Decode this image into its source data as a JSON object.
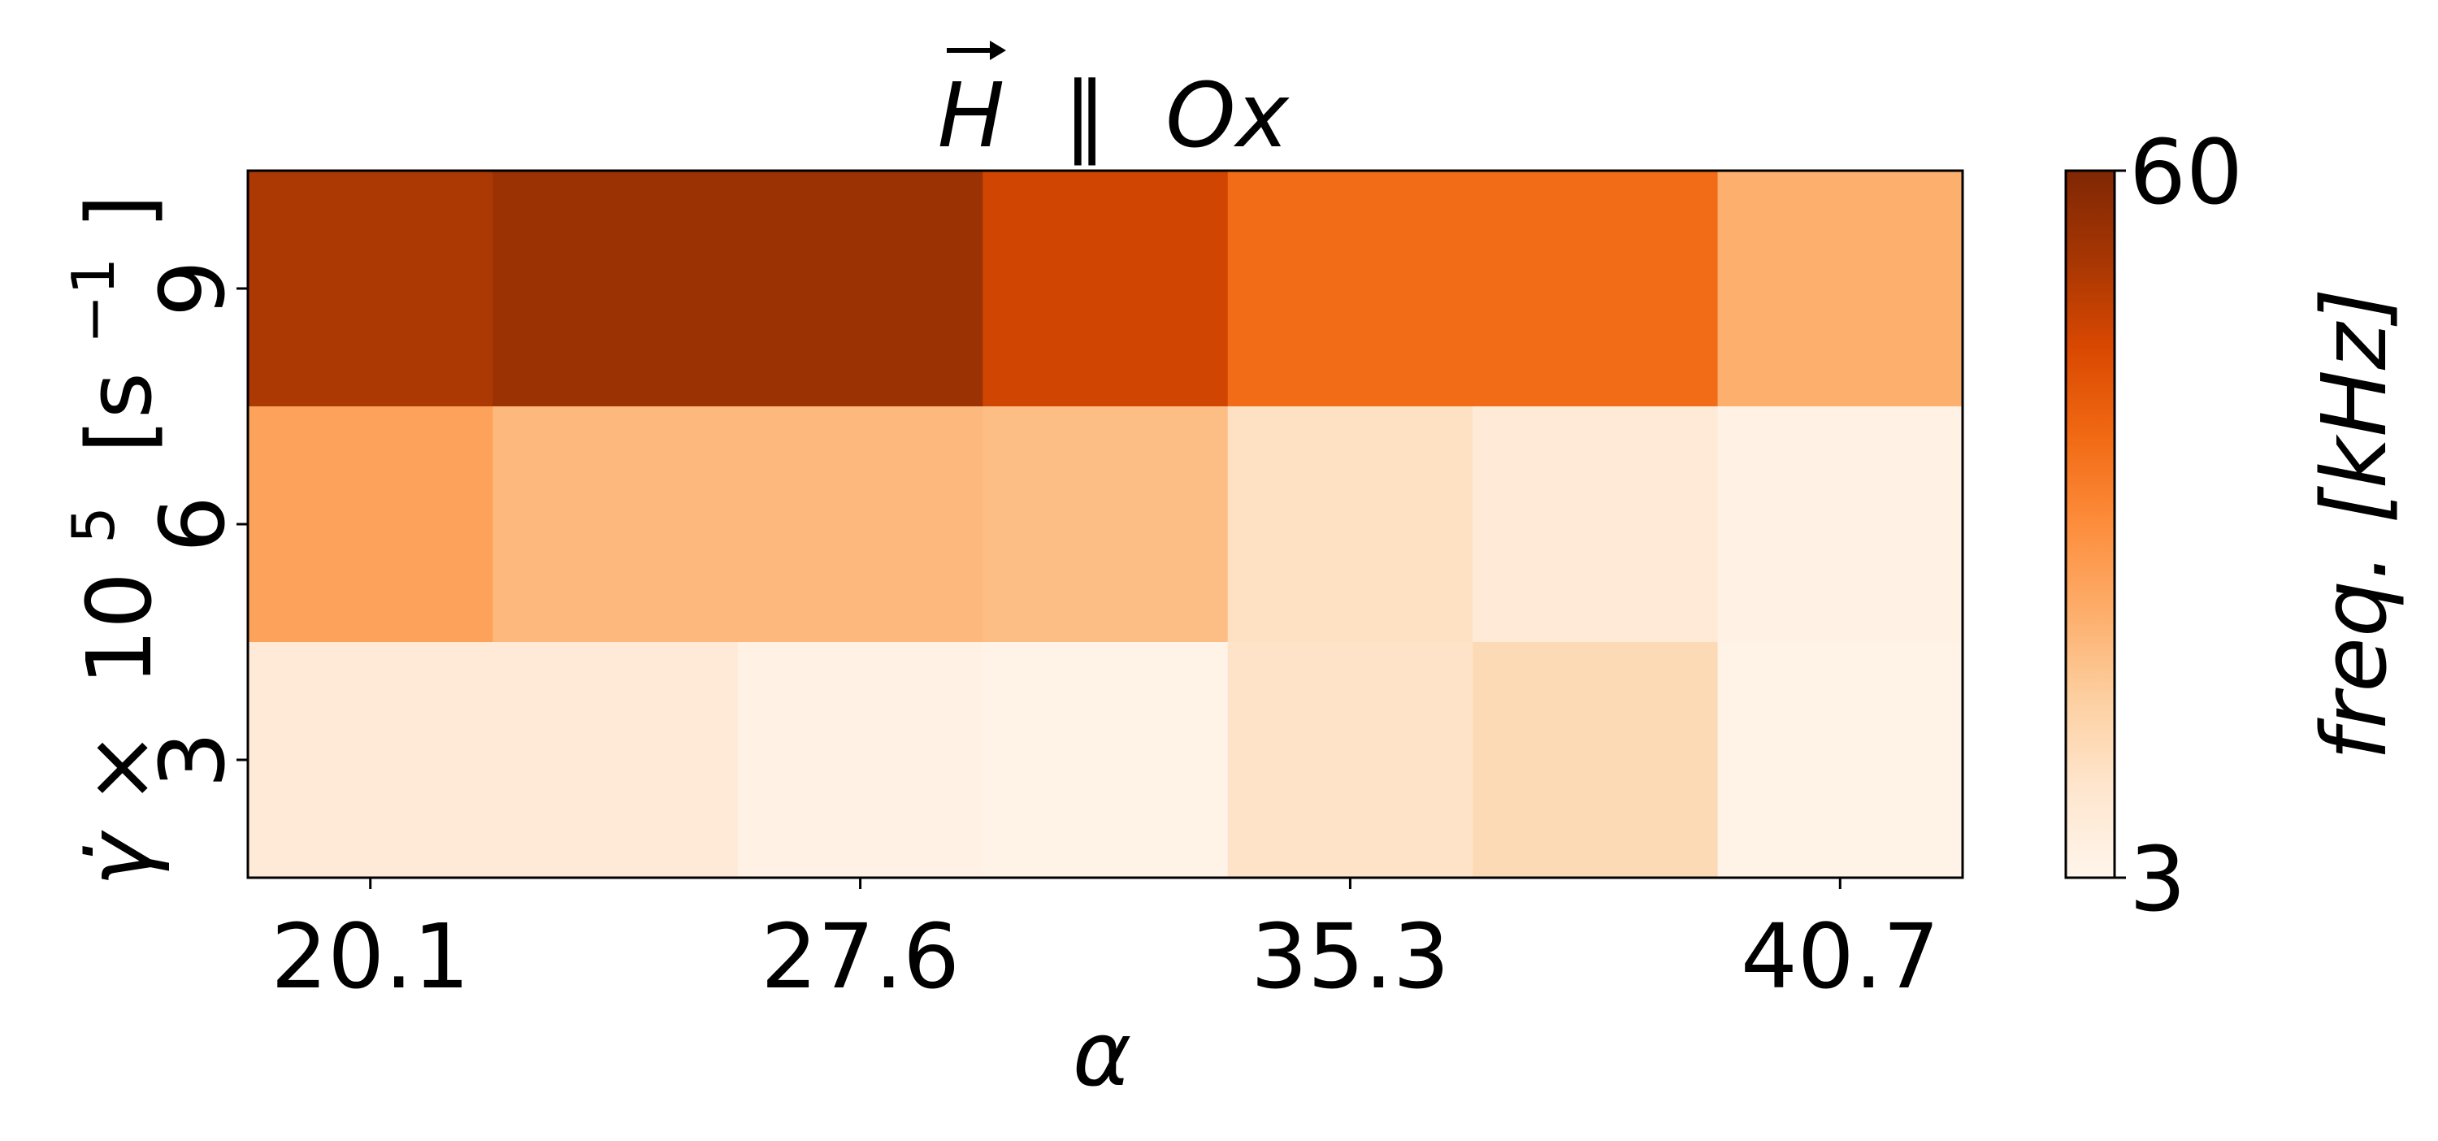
{
  "chart_data": {
    "type": "heatmap",
    "title": {
      "vector_symbol": "H",
      "relation": "∥",
      "axis": "Ox"
    },
    "xlabel": "α",
    "ylabel": {
      "symbol": "γ̇",
      "times": "×",
      "base": "10",
      "exponent": "5",
      "unit_open": "[s",
      "unit_exponent": "−1",
      "unit_close": "]"
    },
    "x_ticks": [
      "20.1",
      "27.6",
      "35.3",
      "40.7"
    ],
    "x_tick_column_index": [
      0.5,
      2.5,
      4.5,
      6.5
    ],
    "x_columns": 7,
    "y_ticks": [
      "3",
      "6",
      "9"
    ],
    "rows": [
      {
        "y": 9,
        "values": [
          52,
          55,
          55,
          47,
          38,
          38,
          24
        ]
      },
      {
        "y": 6,
        "values": [
          27,
          22,
          22,
          21,
          12,
          8,
          5
        ]
      },
      {
        "y": 3,
        "values": [
          8,
          8,
          5,
          4,
          11,
          14,
          4
        ]
      }
    ],
    "colorbar": {
      "label": "freq. [kHz]",
      "min": 3,
      "max": 60,
      "tick_labels": [
        "3",
        "60"
      ],
      "colormap": [
        "#fff5eb",
        "#fee6ce",
        "#fdd0a2",
        "#fdae6b",
        "#fd8d3c",
        "#f16913",
        "#d94801",
        "#a63603",
        "#7f2704"
      ]
    }
  }
}
